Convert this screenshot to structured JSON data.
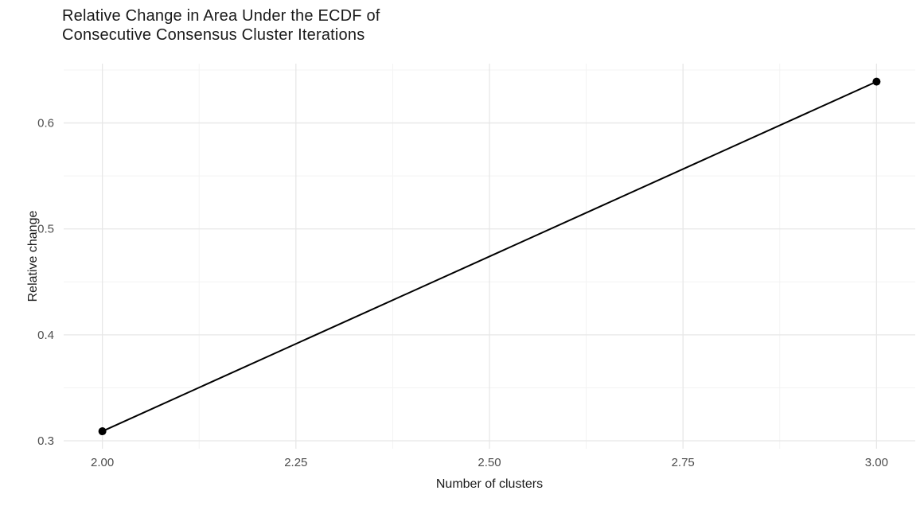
{
  "figure": {
    "title_lines": [
      "Relative Change in Area Under the ECDF of",
      "Consecutive Consensus Cluster Iterations"
    ]
  },
  "chart_data": {
    "type": "line",
    "title": "Relative Change in Area Under the ECDF of Consecutive Consensus Cluster Iterations",
    "xlabel": "Number of clusters",
    "ylabel": "Relative change",
    "series": [
      {
        "name": "relative_change",
        "x": [
          2.0,
          3.0
        ],
        "y": [
          0.309,
          0.639
        ]
      }
    ],
    "xlim": [
      1.95,
      3.05
    ],
    "ylim": [
      0.2925,
      0.656
    ],
    "x_ticks": [
      2.0,
      2.25,
      2.5,
      2.75,
      3.0
    ],
    "x_tick_labels": [
      "2.00",
      "2.25",
      "2.50",
      "2.75",
      "3.00"
    ],
    "y_ticks": [
      0.3,
      0.4,
      0.5,
      0.6
    ],
    "y_tick_labels": [
      "0.3",
      "0.4",
      "0.5",
      "0.6"
    ],
    "x_minor_ticks": [
      2.125,
      2.375,
      2.625,
      2.875
    ],
    "y_minor_ticks": [
      0.35,
      0.45,
      0.55,
      0.65
    ],
    "grid": true,
    "legend": false,
    "colors": {
      "line": "#000000",
      "point": "#000000",
      "major_grid": "#e7e7e7",
      "minor_grid": "#f3f3f3",
      "tick_label": "#4d4d4d",
      "axis_title": "#1a1a1a",
      "background": "#ffffff"
    }
  }
}
